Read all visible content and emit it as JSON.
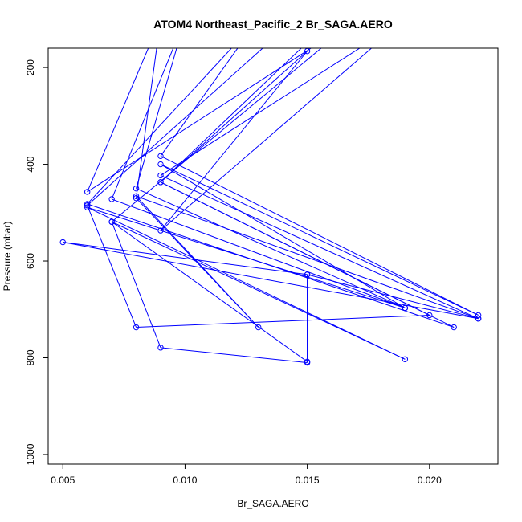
{
  "chart_data": {
    "type": "line",
    "title": "ATOM4 Northeast_Pacific_2 Br_SAGA.AERO",
    "xlabel": "Br_SAGA.AERO",
    "ylabel": "Pressure (mbar)",
    "xlim": [
      0.0044,
      0.0228
    ],
    "ylim": [
      1020,
      160
    ],
    "y_reversed": true,
    "grid": false,
    "xticks": [
      0.005,
      0.01,
      0.015,
      0.02
    ],
    "xtick_labels": [
      "0.005",
      "0.010",
      "0.015",
      "0.020"
    ],
    "yticks": [
      200,
      400,
      600,
      800,
      1000
    ],
    "ytick_labels": [
      "200",
      "400",
      "600",
      "800",
      "1000"
    ],
    "series": [
      {
        "color": "#0000ff",
        "marker": "open-circle",
        "points": [
          {
            "x": 0.0145,
            "y": 100
          },
          {
            "x": 0.006,
            "y": 485
          },
          {
            "x": 0.008,
            "y": 737
          },
          {
            "x": 0.02,
            "y": 712
          },
          {
            "x": 0.009,
            "y": 437
          },
          {
            "x": 0.021,
            "y": 737
          },
          {
            "x": 0.006,
            "y": 482
          },
          {
            "x": 0.013,
            "y": 100
          },
          {
            "x": 0.009,
            "y": 383
          },
          {
            "x": 0.022,
            "y": 712
          },
          {
            "x": 0.009,
            "y": 400
          },
          {
            "x": 0.019,
            "y": 697
          },
          {
            "x": 0.008,
            "y": 450
          },
          {
            "x": 0.01,
            "y": 100
          },
          {
            "x": 0.007,
            "y": 472
          },
          {
            "x": 0.019,
            "y": 697
          },
          {
            "x": 0.006,
            "y": 489
          },
          {
            "x": 0.019,
            "y": 803
          },
          {
            "x": 0.007,
            "y": 519
          },
          {
            "x": 0.009,
            "y": 779
          },
          {
            "x": 0.015,
            "y": 810
          },
          {
            "x": 0.015,
            "y": 628
          },
          {
            "x": 0.022,
            "y": 719
          },
          {
            "x": 0.008,
            "y": 466
          },
          {
            "x": 0.013,
            "y": 737
          },
          {
            "x": 0.008,
            "y": 470
          },
          {
            "x": 0.009,
            "y": 100
          },
          {
            "x": 0.006,
            "y": 457
          },
          {
            "x": 0.017,
            "y": 100
          },
          {
            "x": 0.007,
            "y": 519
          },
          {
            "x": 0.015,
            "y": 808
          },
          {
            "x": 0.015,
            "y": 628
          },
          {
            "x": 0.005,
            "y": 561
          },
          {
            "x": 0.022,
            "y": 719
          },
          {
            "x": 0.009,
            "y": 423
          },
          {
            "x": 0.019,
            "y": 100
          },
          {
            "x": 0.009,
            "y": 537
          },
          {
            "x": 0.015,
            "y": 166
          },
          {
            "x": 0.009,
            "y": 437
          },
          {
            "x": 0.016,
            "y": 100
          }
        ]
      }
    ]
  }
}
